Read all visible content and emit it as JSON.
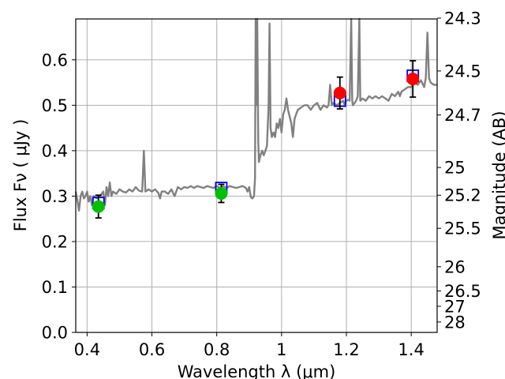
{
  "chart_data": {
    "type": "line",
    "xlabel": "Wavelength  λ (μm)",
    "ylabel": "Flux  Fν  ( μJy )",
    "ylabel_right": "Magnitude (AB)",
    "xlim": [
      0.365,
      1.48
    ],
    "ylim": [
      0.0,
      0.69
    ],
    "xticks": [
      0.4,
      0.6,
      0.8,
      1.0,
      1.2,
      1.4
    ],
    "xtick_labels": [
      "0.4",
      "0.6",
      "0.8",
      "1",
      "1.2",
      "1.4"
    ],
    "yticks": [
      0.0,
      0.1,
      0.2,
      0.3,
      0.4,
      0.5,
      0.6
    ],
    "ytick_labels": [
      "0.0",
      "0.1",
      "0.2",
      "0.3",
      "0.4",
      "0.5",
      "0.6"
    ],
    "right_ticks": [
      {
        "mag": 24.3,
        "label": "24.3"
      },
      {
        "mag": 24.5,
        "label": "24.5"
      },
      {
        "mag": 24.7,
        "label": "24.7"
      },
      {
        "mag": 25.0,
        "label": "25"
      },
      {
        "mag": 25.2,
        "label": "25.2"
      },
      {
        "mag": 25.5,
        "label": "25.5"
      },
      {
        "mag": 26.0,
        "label": "26"
      },
      {
        "mag": 26.5,
        "label": "26.5"
      },
      {
        "mag": 27.0,
        "label": "27"
      },
      {
        "mag": 28.0,
        "label": "28"
      }
    ],
    "grid": true,
    "model_spectrum": {
      "color": "#808080",
      "points": [
        [
          0.365,
          0.31
        ],
        [
          0.37,
          0.29
        ],
        [
          0.375,
          0.268
        ],
        [
          0.38,
          0.3
        ],
        [
          0.385,
          0.31
        ],
        [
          0.39,
          0.295
        ],
        [
          0.395,
          0.3
        ],
        [
          0.4,
          0.31
        ],
        [
          0.405,
          0.288
        ],
        [
          0.41,
          0.3
        ],
        [
          0.415,
          0.28
        ],
        [
          0.42,
          0.3
        ],
        [
          0.43,
          0.295
        ],
        [
          0.44,
          0.3
        ],
        [
          0.45,
          0.31
        ],
        [
          0.455,
          0.28
        ],
        [
          0.46,
          0.32
        ],
        [
          0.465,
          0.3
        ],
        [
          0.47,
          0.33
        ],
        [
          0.475,
          0.3
        ],
        [
          0.48,
          0.31
        ],
        [
          0.49,
          0.305
        ],
        [
          0.5,
          0.315
        ],
        [
          0.51,
          0.31
        ],
        [
          0.52,
          0.308
        ],
        [
          0.53,
          0.315
        ],
        [
          0.54,
          0.31
        ],
        [
          0.55,
          0.32
        ],
        [
          0.56,
          0.312
        ],
        [
          0.57,
          0.31
        ],
        [
          0.575,
          0.4
        ],
        [
          0.58,
          0.31
        ],
        [
          0.59,
          0.315
        ],
        [
          0.6,
          0.31
        ],
        [
          0.61,
          0.315
        ],
        [
          0.62,
          0.307
        ],
        [
          0.625,
          0.295
        ],
        [
          0.63,
          0.31
        ],
        [
          0.64,
          0.31
        ],
        [
          0.65,
          0.305
        ],
        [
          0.66,
          0.315
        ],
        [
          0.67,
          0.3
        ],
        [
          0.68,
          0.32
        ],
        [
          0.69,
          0.315
        ],
        [
          0.7,
          0.32
        ],
        [
          0.71,
          0.318
        ],
        [
          0.72,
          0.322
        ],
        [
          0.73,
          0.318
        ],
        [
          0.74,
          0.322
        ],
        [
          0.75,
          0.32
        ],
        [
          0.76,
          0.318
        ],
        [
          0.77,
          0.322
        ],
        [
          0.78,
          0.32
        ],
        [
          0.79,
          0.318
        ],
        [
          0.8,
          0.322
        ],
        [
          0.81,
          0.318
        ],
        [
          0.82,
          0.322
        ],
        [
          0.83,
          0.318
        ],
        [
          0.84,
          0.322
        ],
        [
          0.85,
          0.32
        ],
        [
          0.86,
          0.318
        ],
        [
          0.87,
          0.32
        ],
        [
          0.88,
          0.322
        ],
        [
          0.89,
          0.318
        ],
        [
          0.895,
          0.31
        ],
        [
          0.9,
          0.32
        ],
        [
          0.905,
          0.298
        ],
        [
          0.91,
          0.295
        ],
        [
          0.915,
          0.3
        ],
        [
          0.918,
          0.34
        ],
        [
          0.92,
          0.69
        ],
        [
          0.922,
          0.5
        ],
        [
          0.925,
          0.69
        ],
        [
          0.928,
          0.42
        ],
        [
          0.93,
          0.375
        ],
        [
          0.935,
          0.39
        ],
        [
          0.94,
          0.4
        ],
        [
          0.945,
          0.39
        ],
        [
          0.95,
          0.4
        ],
        [
          0.955,
          0.41
        ],
        [
          0.96,
          0.5
        ],
        [
          0.963,
          0.68
        ],
        [
          0.966,
          0.45
        ],
        [
          0.97,
          0.43
        ],
        [
          0.975,
          0.44
        ],
        [
          0.98,
          0.43
        ],
        [
          0.985,
          0.46
        ],
        [
          0.99,
          0.45
        ],
        [
          0.995,
          0.47
        ],
        [
          1.0,
          0.44
        ],
        [
          1.005,
          0.48
        ],
        [
          1.01,
          0.49
        ],
        [
          1.015,
          0.515
        ],
        [
          1.02,
          0.49
        ],
        [
          1.025,
          0.475
        ],
        [
          1.03,
          0.46
        ],
        [
          1.035,
          0.43
        ],
        [
          1.04,
          0.47
        ],
        [
          1.045,
          0.48
        ],
        [
          1.05,
          0.49
        ],
        [
          1.06,
          0.495
        ],
        [
          1.07,
          0.5
        ],
        [
          1.08,
          0.5
        ],
        [
          1.09,
          0.49
        ],
        [
          1.1,
          0.5
        ],
        [
          1.11,
          0.505
        ],
        [
          1.12,
          0.49
        ],
        [
          1.13,
          0.5
        ],
        [
          1.14,
          0.495
        ],
        [
          1.145,
          0.5
        ],
        [
          1.15,
          0.545
        ],
        [
          1.155,
          0.5
        ],
        [
          1.16,
          0.505
        ],
        [
          1.17,
          0.5
        ],
        [
          1.18,
          0.505
        ],
        [
          1.19,
          0.51
        ],
        [
          1.195,
          0.5
        ],
        [
          1.2,
          0.51
        ],
        [
          1.205,
          0.512
        ],
        [
          1.21,
          0.51
        ],
        [
          1.215,
          0.69
        ],
        [
          1.218,
          0.51
        ],
        [
          1.22,
          0.5
        ],
        [
          1.225,
          0.505
        ],
        [
          1.23,
          0.51
        ],
        [
          1.235,
          0.52
        ],
        [
          1.24,
          0.69
        ],
        [
          1.243,
          0.51
        ],
        [
          1.25,
          0.515
        ],
        [
          1.26,
          0.51
        ],
        [
          1.27,
          0.52
        ],
        [
          1.28,
          0.515
        ],
        [
          1.29,
          0.52
        ],
        [
          1.3,
          0.515
        ],
        [
          1.31,
          0.52
        ],
        [
          1.32,
          0.515
        ],
        [
          1.33,
          0.51
        ],
        [
          1.34,
          0.525
        ],
        [
          1.35,
          0.52
        ],
        [
          1.36,
          0.53
        ],
        [
          1.365,
          0.52
        ],
        [
          1.37,
          0.53
        ],
        [
          1.38,
          0.535
        ],
        [
          1.39,
          0.54
        ],
        [
          1.4,
          0.54
        ],
        [
          1.41,
          0.55
        ],
        [
          1.42,
          0.545
        ],
        [
          1.43,
          0.555
        ],
        [
          1.44,
          0.54
        ],
        [
          1.445,
          0.56
        ],
        [
          1.45,
          0.66
        ],
        [
          1.455,
          0.56
        ],
        [
          1.46,
          0.55
        ],
        [
          1.47,
          0.545
        ],
        [
          1.48,
          0.545
        ]
      ]
    },
    "model_photometry": {
      "marker": "open square",
      "color": "#0000ff",
      "points": [
        {
          "x": 0.435,
          "y": 0.285
        },
        {
          "x": 0.814,
          "y": 0.318
        },
        {
          "x": 1.18,
          "y": 0.51
        },
        {
          "x": 1.405,
          "y": 0.565
        }
      ]
    },
    "observations_green": {
      "marker": "filled circle",
      "color": "#00c000",
      "points": [
        {
          "x": 0.435,
          "y": 0.277,
          "yerr": 0.025
        },
        {
          "x": 0.814,
          "y": 0.306,
          "yerr": 0.02
        }
      ]
    },
    "observations_red": {
      "marker": "filled circle",
      "color": "#ff0000",
      "points": [
        {
          "x": 1.18,
          "y": 0.527,
          "yerr": 0.035
        },
        {
          "x": 1.405,
          "y": 0.558,
          "yerr": 0.04
        }
      ]
    }
  }
}
